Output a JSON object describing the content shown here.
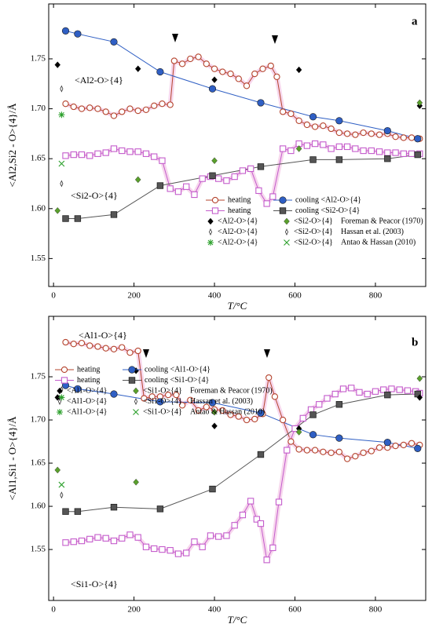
{
  "chart_data": [
    {
      "type": "line",
      "panel_label": "a",
      "ylabel": "<Al2,Si2 - O>{4}/Å",
      "xlabel": "T/°C",
      "annotations": [
        "<Al2-O>{4}",
        "<Si2-O>{4}"
      ],
      "xlim": [
        -12,
        925
      ],
      "ylim": [
        1.522,
        1.805
      ],
      "xticks": [
        0,
        200,
        400,
        600,
        800
      ],
      "yticks": [
        1.55,
        {
          "value": 1.6,
          "label": "1.60"
        },
        1.65,
        {
          "value": 1.7,
          "label": "1.70"
        },
        1.75
      ],
      "legend": "lower right",
      "references": [
        "Foreman & Peacor (1970)",
        "Hassan et al. (2003)",
        "Antao & Hassan (2010)"
      ],
      "series": [
        {
          "name": "heating",
          "color": "#b5442e",
          "marker": "open-circle",
          "line": true,
          "x": [
            30,
            50,
            70,
            90,
            110,
            130,
            150,
            170,
            190,
            210,
            230,
            250,
            270,
            290,
            300,
            320,
            340,
            360,
            380,
            400,
            420,
            440,
            460,
            480,
            500,
            520,
            540,
            555,
            570,
            590,
            610,
            630,
            650,
            670,
            690,
            710,
            730,
            750,
            770,
            790,
            810,
            830,
            850,
            870,
            890,
            910
          ],
          "values": [
            1.705,
            1.702,
            1.7,
            1.701,
            1.7,
            1.697,
            1.693,
            1.697,
            1.7,
            1.698,
            1.699,
            1.703,
            1.705,
            1.704,
            1.748,
            1.745,
            1.75,
            1.752,
            1.745,
            1.74,
            1.737,
            1.735,
            1.73,
            1.723,
            1.735,
            1.74,
            1.743,
            1.732,
            1.697,
            1.695,
            1.688,
            1.684,
            1.682,
            1.683,
            1.68,
            1.676,
            1.675,
            1.674,
            1.676,
            1.675,
            1.674,
            1.675,
            1.672,
            1.671,
            1.671,
            1.67
          ]
        },
        {
          "name": "cooling  <Al2-O>{4}",
          "color": "#2f5fc4",
          "marker": "filled-circle",
          "line": true,
          "x": [
            30,
            60,
            150,
            265,
            395,
            515,
            645,
            710,
            830,
            905
          ],
          "values": [
            1.778,
            1.775,
            1.767,
            1.737,
            1.72,
            1.706,
            1.692,
            1.688,
            1.678,
            1.67
          ]
        },
        {
          "name": "heating",
          "color": "#c45ccc",
          "marker": "open-square",
          "line": true,
          "x": [
            30,
            50,
            70,
            90,
            110,
            130,
            150,
            170,
            190,
            210,
            230,
            250,
            270,
            290,
            310,
            330,
            350,
            370,
            390,
            410,
            430,
            450,
            470,
            490,
            510,
            530,
            545,
            570,
            590,
            610,
            630,
            650,
            670,
            690,
            710,
            730,
            750,
            770,
            790,
            810,
            830,
            850,
            870,
            890,
            910
          ],
          "values": [
            1.653,
            1.654,
            1.654,
            1.653,
            1.655,
            1.656,
            1.66,
            1.658,
            1.657,
            1.657,
            1.655,
            1.652,
            1.648,
            1.62,
            1.617,
            1.622,
            1.614,
            1.63,
            1.632,
            1.63,
            1.628,
            1.632,
            1.638,
            1.64,
            1.618,
            1.605,
            1.612,
            1.66,
            1.658,
            1.665,
            1.663,
            1.665,
            1.664,
            1.66,
            1.662,
            1.662,
            1.66,
            1.658,
            1.658,
            1.657,
            1.656,
            1.656,
            1.655,
            1.655,
            1.655
          ]
        },
        {
          "name": "cooling  <Si2-O>{4}",
          "color": "#555555",
          "marker": "filled-square",
          "line": true,
          "x": [
            30,
            60,
            150,
            265,
            395,
            515,
            645,
            710,
            830,
            905
          ],
          "values": [
            1.59,
            1.59,
            1.594,
            1.623,
            1.633,
            1.642,
            1.649,
            1.649,
            1.65,
            1.654
          ]
        },
        {
          "name": "<Al2-O>{4}",
          "color": "#000000",
          "marker": "diamond",
          "line": false,
          "x": [
            10,
            210,
            400,
            610,
            910
          ],
          "values": [
            1.744,
            1.74,
            1.729,
            1.739,
            1.703
          ]
        },
        {
          "name": "<Si2-O>{4}",
          "color": "#5aa02c",
          "marker": "diamond",
          "line": false,
          "x": [
            10,
            210,
            400,
            610,
            910
          ],
          "values": [
            1.598,
            1.629,
            1.648,
            1.66,
            1.706
          ]
        },
        {
          "name": "<Al2-O>{4}",
          "color": "#333333",
          "marker": "open-diamond",
          "line": false,
          "x": [
            20
          ],
          "values": [
            1.72
          ]
        },
        {
          "name": "<Si2-O>{4}",
          "color": "#333333",
          "marker": "open-diamond",
          "line": false,
          "x": [
            20
          ],
          "values": [
            1.625
          ]
        },
        {
          "name": "<Al2-O>{4}",
          "color": "#2ca02c",
          "marker": "star",
          "line": false,
          "x": [
            20
          ],
          "values": [
            1.694
          ]
        },
        {
          "name": "<Si2-O>{4}",
          "color": "#2ca02c",
          "marker": "x",
          "line": false,
          "x": [
            20
          ],
          "values": [
            1.645
          ]
        }
      ]
    },
    {
      "type": "line",
      "panel_label": "b",
      "ylabel": "<Al1,Si1 - O>{4}/Å",
      "xlabel": "T/°C",
      "annotations": [
        "<Al1-O>{4}",
        "<Si1-O>{4}"
      ],
      "xlim": [
        -12,
        925
      ],
      "ylim": [
        1.491,
        1.82
      ],
      "xticks": [
        0,
        200,
        400,
        600,
        800
      ],
      "yticks": [
        1.55,
        {
          "value": 1.6,
          "label": "1.60"
        },
        1.65,
        {
          "value": 1.7,
          "label": "1.70"
        },
        1.75
      ],
      "legend": "upper left",
      "references": [
        "Foreman & Peacor (1970)",
        "Hassan et al. (2003)",
        "Antao & Hassan (2010)"
      ],
      "series": [
        {
          "name": "heating",
          "color": "#b5442e",
          "marker": "open-circle",
          "line": true,
          "x": [
            30,
            50,
            70,
            90,
            110,
            130,
            150,
            170,
            190,
            210,
            225,
            245,
            265,
            285,
            305,
            320,
            340,
            360,
            380,
            400,
            420,
            440,
            460,
            480,
            500,
            520,
            535,
            550,
            570,
            590,
            610,
            630,
            650,
            670,
            690,
            710,
            730,
            750,
            770,
            790,
            810,
            830,
            850,
            870,
            890,
            910
          ],
          "values": [
            1.79,
            1.788,
            1.789,
            1.786,
            1.785,
            1.783,
            1.782,
            1.784,
            1.778,
            1.78,
            1.725,
            1.727,
            1.727,
            1.729,
            1.729,
            1.717,
            1.723,
            1.711,
            1.715,
            1.712,
            1.711,
            1.706,
            1.704,
            1.7,
            1.701,
            1.707,
            1.749,
            1.727,
            1.7,
            1.675,
            1.666,
            1.665,
            1.665,
            1.663,
            1.662,
            1.663,
            1.655,
            1.658,
            1.662,
            1.664,
            1.668,
            1.668,
            1.67,
            1.671,
            1.673,
            1.671
          ]
        },
        {
          "name": "cooling  <Al1-O>{4}",
          "color": "#2f5fc4",
          "marker": "filled-circle",
          "line": true,
          "x": [
            30,
            60,
            150,
            265,
            395,
            515,
            645,
            710,
            830,
            905
          ],
          "values": [
            1.74,
            1.736,
            1.73,
            1.721,
            1.72,
            1.708,
            1.683,
            1.679,
            1.674,
            1.667
          ]
        },
        {
          "name": "heating",
          "color": "#c45ccc",
          "marker": "open-square",
          "line": true,
          "x": [
            30,
            50,
            70,
            90,
            110,
            130,
            150,
            170,
            190,
            210,
            230,
            250,
            270,
            290,
            310,
            330,
            350,
            370,
            390,
            410,
            430,
            450,
            470,
            490,
            505,
            515,
            530,
            545,
            560,
            580,
            600,
            620,
            640,
            660,
            680,
            700,
            720,
            740,
            760,
            780,
            800,
            820,
            840,
            860,
            880,
            900,
            910
          ],
          "values": [
            1.558,
            1.559,
            1.56,
            1.562,
            1.564,
            1.563,
            1.56,
            1.563,
            1.567,
            1.564,
            1.553,
            1.551,
            1.55,
            1.549,
            1.545,
            1.546,
            1.559,
            1.553,
            1.566,
            1.565,
            1.566,
            1.578,
            1.59,
            1.606,
            1.585,
            1.58,
            1.538,
            1.552,
            1.605,
            1.665,
            1.69,
            1.702,
            1.712,
            1.718,
            1.725,
            1.73,
            1.736,
            1.737,
            1.732,
            1.73,
            1.733,
            1.735,
            1.736,
            1.735,
            1.734,
            1.733,
            1.731
          ]
        },
        {
          "name": "cooling  <Si1-O>{4}",
          "color": "#555555",
          "marker": "filled-square",
          "line": true,
          "x": [
            30,
            60,
            150,
            265,
            395,
            515,
            645,
            710,
            830,
            905
          ],
          "values": [
            1.594,
            1.594,
            1.599,
            1.597,
            1.62,
            1.66,
            1.706,
            1.718,
            1.729,
            1.73
          ]
        },
        {
          "name": "<Al1-O>{4}",
          "color": "#000000",
          "marker": "diamond",
          "line": false,
          "x": [
            10,
            205,
            400,
            610,
            910
          ],
          "values": [
            1.726,
            1.757,
            1.693,
            1.69,
            1.726
          ]
        },
        {
          "name": "<Si1-O>{4}",
          "color": "#5aa02c",
          "marker": "diamond",
          "line": false,
          "x": [
            10,
            205,
            400,
            610,
            910
          ],
          "values": [
            1.642,
            1.628,
            1.709,
            1.686,
            1.748
          ]
        },
        {
          "name": "<Al1-O>{4}",
          "color": "#333333",
          "marker": "open-diamond",
          "line": false,
          "x": [
            20
          ],
          "values": [
            1.735
          ]
        },
        {
          "name": "<Si1-O>{4}",
          "color": "#333333",
          "marker": "open-diamond",
          "line": false,
          "x": [
            20
          ],
          "values": [
            1.613
          ]
        },
        {
          "name": "<Al1-O>{4}",
          "color": "#2ca02c",
          "marker": "star",
          "line": false,
          "x": [
            20
          ],
          "values": [
            1.726
          ]
        },
        {
          "name": "<Si1-O>{4}",
          "color": "#2ca02c",
          "marker": "x",
          "line": false,
          "x": [
            20
          ],
          "values": [
            1.625
          ]
        }
      ]
    }
  ]
}
